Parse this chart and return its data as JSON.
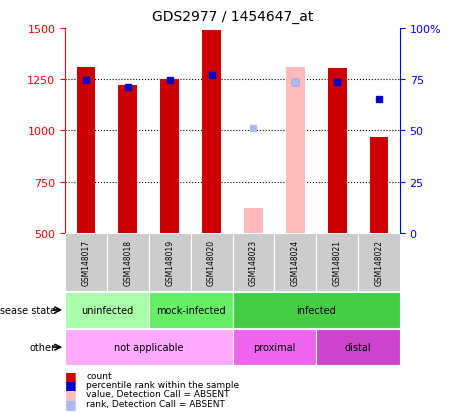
{
  "title": "GDS2977 / 1454647_at",
  "samples": [
    "GSM148017",
    "GSM148018",
    "GSM148019",
    "GSM148020",
    "GSM148023",
    "GSM148024",
    "GSM148021",
    "GSM148022"
  ],
  "count_values": [
    1310,
    1220,
    1250,
    1490,
    null,
    null,
    1305,
    970
  ],
  "count_absent_values": [
    null,
    null,
    null,
    null,
    620,
    1310,
    null,
    null
  ],
  "percentile_values": [
    1245,
    1210,
    1245,
    1270,
    null,
    1235,
    1235,
    1155
  ],
  "percentile_absent_values": [
    null,
    null,
    null,
    null,
    1010,
    1235,
    null,
    null
  ],
  "ylim": [
    500,
    1500
  ],
  "y2lim": [
    0,
    100
  ],
  "yticks": [
    500,
    750,
    1000,
    1250,
    1500
  ],
  "y2ticks": [
    0,
    25,
    50,
    75,
    100
  ],
  "y2ticklabels": [
    "0",
    "25",
    "50",
    "75",
    "100%"
  ],
  "gridlines": [
    750,
    1000,
    1250
  ],
  "disease_state_groups": [
    {
      "label": "uninfected",
      "start": 0,
      "end": 2,
      "color": "#aaffaa"
    },
    {
      "label": "mock-infected",
      "start": 2,
      "end": 4,
      "color": "#66ee66"
    },
    {
      "label": "infected",
      "start": 4,
      "end": 8,
      "color": "#44cc44"
    }
  ],
  "other_groups": [
    {
      "label": "not applicable",
      "start": 0,
      "end": 4,
      "color": "#ffaaff"
    },
    {
      "label": "proximal",
      "start": 4,
      "end": 6,
      "color": "#ee66ee"
    },
    {
      "label": "distal",
      "start": 6,
      "end": 8,
      "color": "#cc44cc"
    }
  ],
  "bar_color_present": "#cc0000",
  "bar_color_absent": "#ffbbbb",
  "dot_color_present": "#0000cc",
  "dot_color_absent": "#aabbee",
  "sample_box_color": "#cccccc",
  "bar_width": 0.45,
  "legend_entries": [
    {
      "color": "#cc0000",
      "label": "count"
    },
    {
      "color": "#0000cc",
      "label": "percentile rank within the sample"
    },
    {
      "color": "#ffbbbb",
      "label": "value, Detection Call = ABSENT"
    },
    {
      "color": "#aabbee",
      "label": "rank, Detection Call = ABSENT"
    }
  ]
}
